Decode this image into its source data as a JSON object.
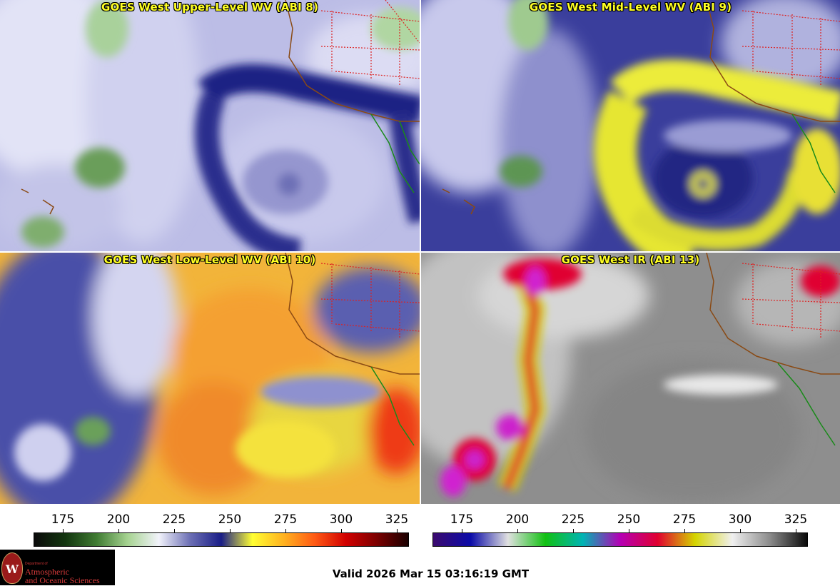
{
  "panels": {
    "upper": {
      "title": "GOES West Upper-Level WV (ABI 8)"
    },
    "mid": {
      "title": "GOES West Mid-Level WV (ABI 9)"
    },
    "low": {
      "title": "GOES West Low-Level WV (ABI 10)"
    },
    "ir": {
      "title": "GOES West IR (ABI 13)"
    }
  },
  "colorbars": {
    "wv": {
      "ticks": [
        "175",
        "200",
        "225",
        "250",
        "275",
        "300",
        "325"
      ],
      "colors": [
        "#0b0b0b",
        "#12350f",
        "#3f7b32",
        "#a6d391",
        "#f2f3fb",
        "#6c6fb4",
        "#1a1e87",
        "#ffff33",
        "#ffb220",
        "#ff5a14",
        "#d10000",
        "#7a0000",
        "#1a0000"
      ]
    },
    "ir": {
      "ticks": [
        "175",
        "200",
        "225",
        "250",
        "275",
        "300",
        "325"
      ],
      "colors": [
        "#3c0b6e",
        "#0b0ba8",
        "#e0e0e0",
        "#12c012",
        "#00b4b4",
        "#b400b4",
        "#e00030",
        "#d4d400",
        "#f0f0f0",
        "#8c8c8c",
        "#0a0a0a"
      ]
    }
  },
  "logo": {
    "seal": "W",
    "dept": "Department of",
    "line1": "Atmospheric",
    "line2": "and Oceanic Sciences"
  },
  "footer": {
    "valid": "Valid 2026 Mar 15 03:16:19 GMT"
  },
  "colors": {
    "title_text": "#ffff22",
    "state_lines": "#dd2222",
    "coastline": "#8a4a14",
    "mexico_coast": "#1a8a1a"
  }
}
